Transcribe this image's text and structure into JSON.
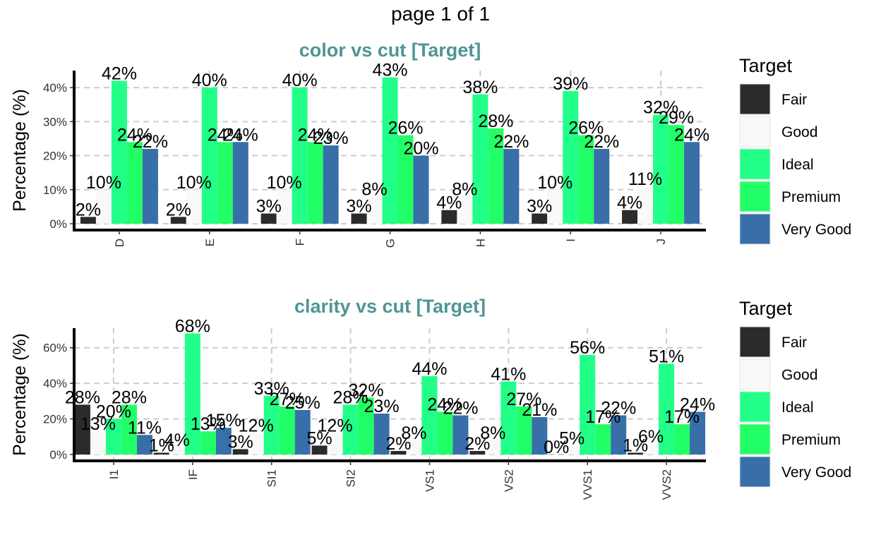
{
  "page": {
    "title": "page 1 of 1"
  },
  "colors": {
    "title": "#4f9595",
    "grid": "#cccccc",
    "series": {
      "Fair": "#2b2b2b",
      "Good": "#f9f9f9",
      "Ideal": "#22ff88",
      "Premium": "#22ff66",
      "Very Good": "#386fa9"
    }
  },
  "chart_data": [
    {
      "type": "bar",
      "title": "color vs cut [Target]",
      "ylabel": "Percentage (%)",
      "xlabel": "",
      "ylim": [
        0,
        45
      ],
      "yticks": [
        0,
        10,
        20,
        30,
        40
      ],
      "ytick_labels": [
        "0%",
        "10%",
        "20%",
        "30%",
        "40%"
      ],
      "grid": true,
      "legend": {
        "title": "Target",
        "placement": "right"
      },
      "categories": [
        "D",
        "E",
        "F",
        "G",
        "H",
        "I",
        "J"
      ],
      "series": [
        {
          "name": "Fair",
          "values": [
            2,
            2,
            3,
            3,
            4,
            3,
            4
          ]
        },
        {
          "name": "Good",
          "values": [
            10,
            10,
            10,
            8,
            8,
            10,
            11
          ]
        },
        {
          "name": "Ideal",
          "values": [
            42,
            40,
            40,
            43,
            38,
            39,
            32
          ]
        },
        {
          "name": "Premium",
          "values": [
            24,
            24,
            24,
            26,
            28,
            26,
            29
          ]
        },
        {
          "name": "Very Good",
          "values": [
            22,
            24,
            23,
            20,
            22,
            22,
            24
          ]
        }
      ]
    },
    {
      "type": "bar",
      "title": "clarity vs cut [Target]",
      "ylabel": "Percentage (%)",
      "xlabel": "",
      "ylim": [
        0,
        71
      ],
      "yticks": [
        0,
        20,
        40,
        60
      ],
      "ytick_labels": [
        "0%",
        "20%",
        "40%",
        "60%"
      ],
      "grid": true,
      "legend": {
        "title": "Target",
        "placement": "right"
      },
      "categories": [
        "I1",
        "IF",
        "SI1",
        "SI2",
        "VS1",
        "VS2",
        "VVS1",
        "VVS2"
      ],
      "series": [
        {
          "name": "Fair",
          "values": [
            28,
            1,
            3,
            5,
            2,
            2,
            0,
            1
          ]
        },
        {
          "name": "Good",
          "values": [
            13,
            4,
            12,
            12,
            8,
            8,
            5,
            6
          ]
        },
        {
          "name": "Ideal",
          "values": [
            20,
            68,
            33,
            28,
            44,
            41,
            56,
            51
          ]
        },
        {
          "name": "Premium",
          "values": [
            28,
            13,
            27,
            32,
            24,
            27,
            17,
            17
          ]
        },
        {
          "name": "Very Good",
          "values": [
            11,
            15,
            25,
            23,
            22,
            21,
            22,
            24
          ]
        }
      ]
    }
  ]
}
